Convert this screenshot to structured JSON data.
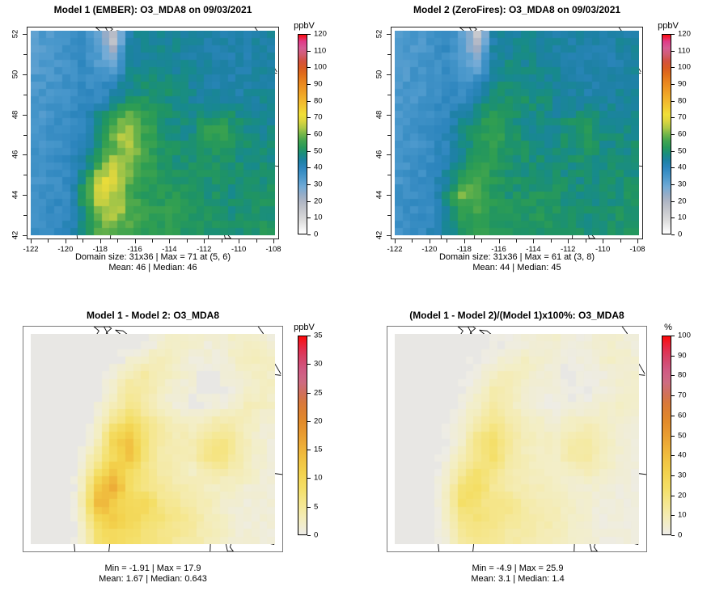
{
  "figure_background": "#ffffff",
  "palettes": {
    "conc": {
      "domain": [
        0,
        120
      ],
      "stops": [
        [
          0,
          "#ffffff"
        ],
        [
          8,
          "#dcdcdc"
        ],
        [
          15,
          "#c2c4ca"
        ],
        [
          22,
          "#a3adc2"
        ],
        [
          28,
          "#74abd6"
        ],
        [
          34,
          "#4a98cc"
        ],
        [
          40,
          "#2c85bd"
        ],
        [
          44,
          "#1d81a4"
        ],
        [
          47,
          "#178a8c"
        ],
        [
          50,
          "#1f9464"
        ],
        [
          54,
          "#2f9e52"
        ],
        [
          58,
          "#54ab4b"
        ],
        [
          63,
          "#a5c647"
        ],
        [
          68,
          "#ddd63e"
        ],
        [
          72,
          "#f0df38"
        ],
        [
          78,
          "#f3c030"
        ],
        [
          85,
          "#f0a225"
        ],
        [
          92,
          "#e8821e"
        ],
        [
          98,
          "#dd6418"
        ],
        [
          103,
          "#d24e31"
        ],
        [
          107,
          "#d05a66"
        ],
        [
          111,
          "#d46394"
        ],
        [
          115,
          "#dc4795"
        ],
        [
          118,
          "#e9246f"
        ],
        [
          120,
          "#fa0d0d"
        ]
      ]
    },
    "diff": {
      "domain": [
        -2,
        35
      ],
      "stops": [
        [
          -2,
          "#e7e6e3"
        ],
        [
          0,
          "#edece8"
        ],
        [
          2,
          "#f3eec6"
        ],
        [
          5,
          "#f5e897"
        ],
        [
          8,
          "#f4df68"
        ],
        [
          11,
          "#f3d24c"
        ],
        [
          14,
          "#f0bc3e"
        ],
        [
          17,
          "#eaa132"
        ],
        [
          20,
          "#e28a2a"
        ],
        [
          23,
          "#d97936"
        ],
        [
          25,
          "#d0705c"
        ],
        [
          27,
          "#cd6a84"
        ],
        [
          29,
          "#d05a84"
        ],
        [
          31,
          "#d4446a"
        ],
        [
          33,
          "#e52a48"
        ],
        [
          35,
          "#fb0a0a"
        ]
      ]
    }
  },
  "chart_data": [
    {
      "type": "heatmap",
      "title": "Model 1 (EMBER): O3_MDA8 on 09/03/2021",
      "unit": "ppbV",
      "palette": "conc",
      "palette_scale": 1,
      "colorbar_ticks": [
        0,
        10,
        20,
        30,
        40,
        50,
        60,
        70,
        80,
        90,
        100,
        110,
        120
      ],
      "x_ticks": [
        -122,
        -120,
        -118,
        -116,
        -114,
        -112,
        -110,
        -108
      ],
      "y_ticks": [
        52,
        50,
        48,
        46,
        44,
        42
      ],
      "stats_line1": "Domain size: 31x36 | Max = 71 at (5, 6)",
      "stats_line2": "Mean: 46 |  Median: 46",
      "noise": 2.2,
      "grid": [
        [
          33,
          34,
          36,
          38,
          30,
          14,
          44,
          45,
          45,
          45,
          44,
          44,
          43,
          43,
          44,
          44
        ],
        [
          33,
          34,
          36,
          38,
          32,
          26,
          45,
          46,
          46,
          46,
          44,
          43,
          43,
          42,
          43,
          44
        ],
        [
          33,
          35,
          36,
          38,
          34,
          30,
          46,
          47,
          47,
          46,
          45,
          44,
          43,
          42,
          43,
          44
        ],
        [
          34,
          35,
          37,
          39,
          36,
          42,
          47,
          48,
          48,
          47,
          45,
          44,
          43,
          43,
          44,
          45
        ],
        [
          34,
          35,
          37,
          39,
          38,
          46,
          49,
          50,
          49,
          48,
          46,
          45,
          44,
          44,
          45,
          46
        ],
        [
          34,
          36,
          37,
          40,
          48,
          55,
          60,
          54,
          50,
          48,
          47,
          50,
          52,
          48,
          46,
          46
        ],
        [
          35,
          36,
          38,
          40,
          50,
          62,
          66,
          56,
          50,
          48,
          48,
          54,
          56,
          50,
          47,
          47
        ],
        [
          35,
          36,
          38,
          41,
          52,
          58,
          64,
          55,
          51,
          49,
          48,
          50,
          52,
          49,
          48,
          48
        ],
        [
          35,
          37,
          38,
          44,
          56,
          66,
          60,
          54,
          51,
          50,
          49,
          49,
          50,
          49,
          48,
          48
        ],
        [
          35,
          37,
          39,
          50,
          68,
          70,
          58,
          54,
          52,
          51,
          50,
          49,
          49,
          48,
          48,
          49
        ],
        [
          36,
          37,
          39,
          52,
          70,
          64,
          56,
          53,
          52,
          53,
          51,
          50,
          49,
          48,
          49,
          50
        ],
        [
          36,
          38,
          39,
          50,
          62,
          66,
          58,
          54,
          53,
          54,
          52,
          50,
          49,
          49,
          50,
          50
        ],
        [
          36,
          38,
          40,
          48,
          58,
          60,
          56,
          54,
          53,
          52,
          51,
          50,
          49,
          49,
          50,
          51
        ]
      ]
    },
    {
      "type": "heatmap",
      "title": "Model 2 (ZeroFires): O3_MDA8 on 09/03/2021",
      "unit": "ppbV",
      "palette": "conc",
      "palette_scale": 1,
      "colorbar_ticks": [
        0,
        10,
        20,
        30,
        40,
        50,
        60,
        70,
        80,
        90,
        100,
        110,
        120
      ],
      "x_ticks": [
        -122,
        -120,
        -118,
        -116,
        -114,
        -112,
        -110,
        -108
      ],
      "y_ticks": [
        52,
        50,
        48,
        46,
        44,
        42
      ],
      "stats_line1": "Domain size: 31x36 | Max = 61 at (3, 8)",
      "stats_line2": "Mean: 44 |  Median: 45",
      "noise": 2.2,
      "grid": [
        [
          33,
          34,
          36,
          38,
          30,
          14,
          44,
          45,
          45,
          45,
          44,
          44,
          43,
          43,
          44,
          44
        ],
        [
          33,
          34,
          36,
          38,
          32,
          26,
          45,
          46,
          46,
          46,
          44,
          43,
          43,
          42,
          43,
          44
        ],
        [
          33,
          35,
          36,
          38,
          34,
          30,
          46,
          47,
          47,
          46,
          45,
          44,
          43,
          42,
          43,
          44
        ],
        [
          34,
          35,
          37,
          39,
          36,
          42,
          47,
          48,
          48,
          47,
          45,
          44,
          43,
          43,
          44,
          45
        ],
        [
          34,
          35,
          37,
          39,
          38,
          46,
          49,
          50,
          49,
          48,
          46,
          45,
          44,
          44,
          45,
          46
        ],
        [
          34,
          36,
          37,
          40,
          46,
          50,
          52,
          50,
          48,
          47,
          46,
          48,
          50,
          47,
          46,
          46
        ],
        [
          35,
          36,
          38,
          40,
          47,
          52,
          56,
          51,
          48,
          47,
          47,
          50,
          52,
          48,
          47,
          47
        ],
        [
          35,
          36,
          38,
          41,
          48,
          51,
          53,
          50,
          49,
          48,
          47,
          49,
          50,
          48,
          48,
          48
        ],
        [
          35,
          37,
          38,
          43,
          50,
          54,
          52,
          50,
          49,
          49,
          48,
          48,
          49,
          48,
          48,
          48
        ],
        [
          35,
          37,
          39,
          46,
          56,
          58,
          52,
          50,
          50,
          50,
          49,
          48,
          48,
          48,
          48,
          49
        ],
        [
          36,
          37,
          39,
          48,
          61,
          56,
          52,
          50,
          50,
          51,
          50,
          49,
          48,
          48,
          49,
          50
        ],
        [
          36,
          38,
          39,
          47,
          54,
          56,
          52,
          51,
          51,
          52,
          51,
          49,
          48,
          49,
          50,
          50
        ],
        [
          36,
          38,
          40,
          46,
          52,
          54,
          52,
          51,
          51,
          51,
          50,
          49,
          49,
          49,
          50,
          51
        ]
      ]
    },
    {
      "type": "heatmap",
      "title": "Model 1 - Model 2: O3_MDA8",
      "unit": "ppbV",
      "palette": "diff",
      "palette_scale": 1,
      "colorbar_ticks": [
        0,
        5,
        10,
        15,
        20,
        25,
        30,
        35
      ],
      "x_ticks": [],
      "y_ticks": [],
      "stats_line1": "Min = -1.91 | Max = 17.9",
      "stats_line2": "Mean: 1.67 |  Median: 0.643",
      "noise": 0.45,
      "grid": [
        [
          -1,
          -1,
          -1,
          -1,
          -1,
          -1,
          0,
          0,
          1,
          2,
          2,
          1,
          1,
          2,
          2,
          1
        ],
        [
          -1,
          -1,
          -1,
          -1,
          -1,
          0,
          1,
          2,
          3,
          2,
          1,
          1,
          1,
          2,
          3,
          2
        ],
        [
          -1,
          -1,
          -1,
          -1,
          0,
          1,
          3,
          4,
          3,
          2,
          1,
          0,
          1,
          1,
          2,
          2
        ],
        [
          -1,
          -1,
          -1,
          -1,
          0,
          2,
          5,
          4,
          2,
          1,
          1,
          0,
          0,
          1,
          2,
          2
        ],
        [
          -1,
          -1,
          -1,
          -1,
          1,
          3,
          6,
          4,
          2,
          1,
          0,
          1,
          1,
          2,
          3,
          2
        ],
        [
          -1,
          -1,
          -1,
          0,
          2,
          6,
          9,
          6,
          4,
          3,
          2,
          3,
          4,
          3,
          2,
          1
        ],
        [
          -1,
          -1,
          -1,
          0,
          3,
          11,
          13,
          7,
          4,
          3,
          3,
          5,
          6,
          4,
          2,
          1
        ],
        [
          -1,
          -1,
          -1,
          1,
          5,
          9,
          14,
          7,
          4,
          3,
          3,
          6,
          7,
          4,
          2,
          1
        ],
        [
          -1,
          -1,
          -1,
          2,
          8,
          13,
          9,
          6,
          4,
          3,
          2,
          3,
          4,
          3,
          2,
          1
        ],
        [
          -1,
          -1,
          -1,
          3,
          13,
          16,
          8,
          6,
          5,
          4,
          3,
          2,
          2,
          2,
          1,
          1
        ],
        [
          -1,
          -1,
          -1,
          4,
          16,
          11,
          9,
          10,
          6,
          5,
          4,
          3,
          2,
          1,
          1,
          1
        ],
        [
          -1,
          -1,
          -1,
          3,
          10,
          12,
          10,
          8,
          7,
          6,
          5,
          3,
          2,
          1,
          1,
          1
        ],
        [
          -1,
          -1,
          -1,
          2,
          8,
          9,
          8,
          7,
          6,
          5,
          4,
          3,
          2,
          1,
          1,
          1
        ]
      ]
    },
    {
      "type": "heatmap",
      "title": "(Model 1 - Model 2)/(Model 1)x100%: O3_MDA8",
      "unit": "%",
      "palette": "diff",
      "palette_scale": 0.35,
      "colorbar_ticks": [
        0,
        10,
        20,
        30,
        40,
        50,
        60,
        70,
        80,
        90,
        100
      ],
      "x_ticks": [],
      "y_ticks": [],
      "stats_line1": "Min = -4.9 | Max = 25.9",
      "stats_line2": "Mean: 3.1 |  Median: 1.4",
      "noise": 1.1,
      "grid": [
        [
          -1,
          -1,
          -1,
          -1,
          -1,
          -1,
          0,
          1,
          2,
          4,
          4,
          2,
          2,
          4,
          4,
          2
        ],
        [
          -1,
          -1,
          -1,
          -1,
          -1,
          0,
          2,
          4,
          6,
          4,
          2,
          2,
          2,
          4,
          6,
          4
        ],
        [
          -1,
          -1,
          -1,
          -1,
          0,
          2,
          6,
          8,
          6,
          4,
          2,
          0,
          2,
          2,
          4,
          4
        ],
        [
          -1,
          -1,
          -1,
          -1,
          0,
          4,
          10,
          8,
          4,
          2,
          2,
          0,
          0,
          2,
          4,
          4
        ],
        [
          -1,
          -1,
          -1,
          -1,
          2,
          6,
          12,
          8,
          4,
          2,
          0,
          2,
          2,
          4,
          6,
          4
        ],
        [
          -1,
          -1,
          -1,
          0,
          4,
          11,
          16,
          11,
          8,
          6,
          4,
          6,
          8,
          6,
          4,
          2
        ],
        [
          -1,
          -1,
          -1,
          0,
          6,
          18,
          22,
          13,
          8,
          6,
          6,
          10,
          12,
          8,
          4,
          2
        ],
        [
          -1,
          -1,
          -1,
          2,
          9,
          16,
          23,
          13,
          8,
          6,
          6,
          11,
          13,
          8,
          4,
          2
        ],
        [
          -1,
          -1,
          -1,
          4,
          14,
          22,
          16,
          11,
          8,
          6,
          4,
          6,
          8,
          6,
          4,
          2
        ],
        [
          -1,
          -1,
          -1,
          6,
          22,
          25,
          14,
          11,
          9,
          8,
          6,
          4,
          4,
          4,
          2,
          2
        ],
        [
          -1,
          -1,
          -1,
          8,
          25,
          19,
          16,
          17,
          11,
          9,
          8,
          6,
          4,
          2,
          2,
          2
        ],
        [
          -1,
          -1,
          -1,
          6,
          17,
          20,
          17,
          14,
          12,
          11,
          9,
          6,
          4,
          2,
          2,
          2
        ],
        [
          -1,
          -1,
          -1,
          4,
          14,
          16,
          14,
          12,
          11,
          9,
          8,
          6,
          4,
          2,
          2,
          2
        ]
      ]
    }
  ]
}
